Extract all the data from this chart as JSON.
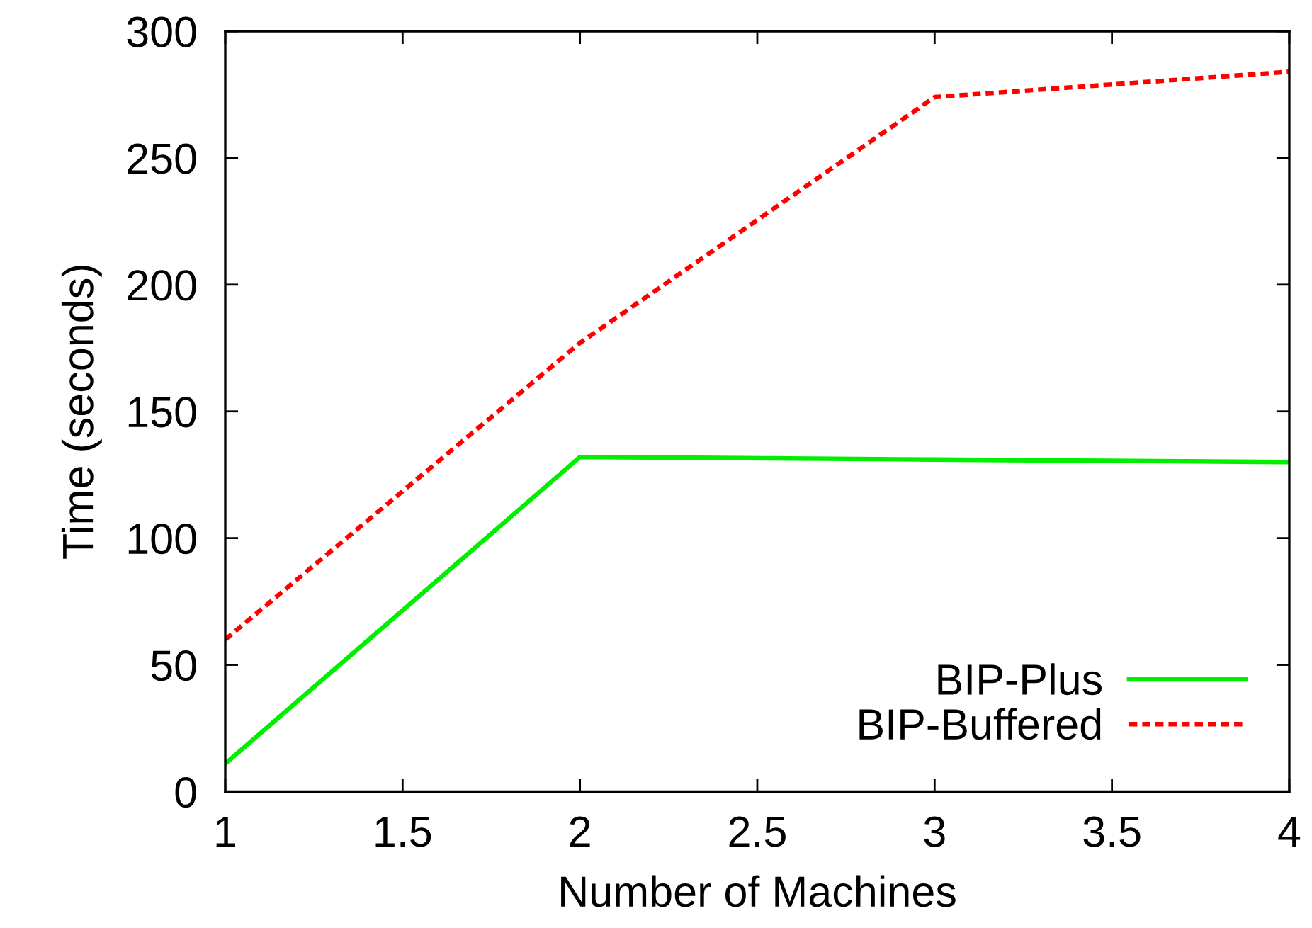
{
  "chart_data": {
    "type": "line",
    "xlabel": "Number of Machines",
    "ylabel": "Time (seconds)",
    "x": [
      1,
      2,
      3,
      4
    ],
    "xlim": [
      1,
      4
    ],
    "ylim": [
      0,
      300
    ],
    "xticks": [
      1,
      1.5,
      2,
      2.5,
      3,
      3.5,
      4
    ],
    "yticks": [
      0,
      50,
      100,
      150,
      200,
      250,
      300
    ],
    "legend": "lower right",
    "series": [
      {
        "name": "BIP-Plus",
        "color": "#00ee00",
        "line_style": "solid",
        "values": [
          11,
          132,
          131,
          130
        ]
      },
      {
        "name": "BIP-Buffered",
        "color": "#ff0000",
        "line_style": "dashed",
        "values": [
          60,
          177,
          274,
          284
        ]
      }
    ]
  }
}
